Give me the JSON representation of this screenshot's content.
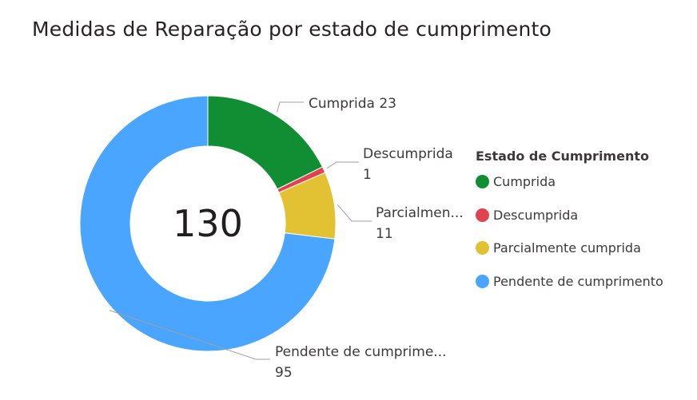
{
  "title": "Medidas de Reparação por estado de cumprimento",
  "center_total": "130",
  "legend": {
    "title": "Estado de Cumprimento",
    "items": [
      {
        "label": "Cumprida",
        "color": "#118D34"
      },
      {
        "label": "Descumprida",
        "color": "#E0434F"
      },
      {
        "label": "Parcialmente cumprida",
        "color": "#E2C232"
      },
      {
        "label": "Pendente de cumprimento",
        "color": "#4AA5FF"
      }
    ]
  },
  "data_labels": [
    {
      "name": "Cumprida",
      "value": "23"
    },
    {
      "name": "Descumprida",
      "value": "1"
    },
    {
      "name": "Parcialmen...",
      "value": "11"
    },
    {
      "name": "Pendente de cumprime...",
      "value": "95"
    }
  ],
  "chart_data": {
    "type": "pie",
    "donut": true,
    "title": "Medidas de Reparação por estado de cumprimento",
    "total": 130,
    "categories": [
      "Cumprida",
      "Descumprida",
      "Parcialmente cumprida",
      "Pendente de cumprimento"
    ],
    "values": [
      23,
      1,
      11,
      95
    ],
    "colors": [
      "#118D34",
      "#E0434F",
      "#E2C232",
      "#4AA5FF"
    ],
    "legend_title": "Estado de Cumprimento",
    "legend_position": "right"
  }
}
